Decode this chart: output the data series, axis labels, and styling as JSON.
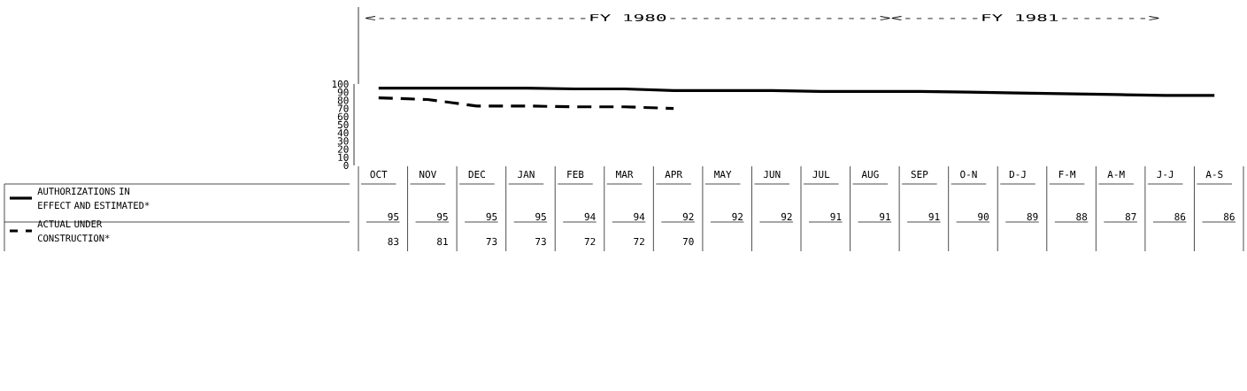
{
  "chart_data": {
    "type": "line",
    "categories": [
      "OCT",
      "NOV",
      "DEC",
      "JAN",
      "FEB",
      "MAR",
      "APR",
      "MAY",
      "JUN",
      "JUL",
      "AUG",
      "SEP",
      "O-N",
      "D-J",
      "F-M",
      "A-M",
      "J-J",
      "A-S"
    ],
    "series": [
      {
        "name": "AUTHORIZATIONS IN EFFECT AND ESTIMATED*",
        "color": "#000000",
        "line_style": "solid",
        "values": [
          95,
          95,
          95,
          95,
          94,
          94,
          92,
          92,
          92,
          91,
          91,
          91,
          90,
          89,
          88,
          87,
          86,
          86
        ]
      },
      {
        "name": "ACTUAL UNDER CONSTRUCTION*",
        "color": "#000000",
        "line_style": "dashed",
        "values": [
          83,
          81,
          73,
          73,
          72,
          72,
          70,
          null,
          null,
          null,
          null,
          null,
          null,
          null,
          null,
          null,
          null,
          null
        ]
      }
    ],
    "ylim": [
      0,
      100
    ],
    "yticks": [
      0,
      10,
      20,
      30,
      40,
      50,
      60,
      70,
      80,
      90,
      100
    ],
    "marker": "none",
    "data_labels": true,
    "legend": "bottom left",
    "annotations": [
      "<-------------------FY 1980------------------->",
      "<-------FY 1981-------->"
    ]
  }
}
